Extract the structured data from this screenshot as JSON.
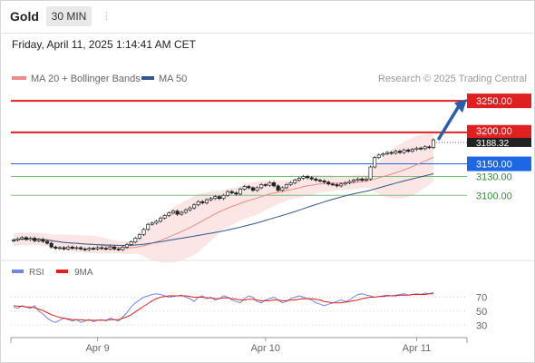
{
  "header": {
    "asset": "Gold",
    "timeframe": "30 MIN"
  },
  "datetime": "Friday, April 11, 2025 1:14:41 AM CET",
  "legend": {
    "ma20": {
      "label": "MA 20 + Bollinger Bands",
      "color": "#ef8a8a"
    },
    "ma50": {
      "label": "MA 50",
      "color": "#34568b"
    },
    "credit": "Research © 2025 Trading Central"
  },
  "rsi_legend": {
    "rsi": {
      "label": "RSI",
      "color": "#6f86e6"
    },
    "ma": {
      "label": "9MA",
      "color": "#e02020"
    }
  },
  "colors": {
    "resistance": "#e02020",
    "pivot": "#1f66e5",
    "support": "#7ac17a",
    "up": "#ffffff",
    "down": "#222222",
    "arrow": "#2a5ea8"
  },
  "chart_data": [
    {
      "type": "candlestick",
      "xaxis_labels": [
        "Apr 9",
        "Apr 10",
        "Apr 11"
      ],
      "ylim": [
        3014,
        3266
      ],
      "price_levels": [
        {
          "label": "3250.00",
          "value": 3250,
          "kind": "resistance"
        },
        {
          "label": "3200.00",
          "value": 3200,
          "kind": "resistance"
        },
        {
          "label": "3150.00",
          "value": 3150,
          "kind": "pivot"
        },
        {
          "label": "3130.00",
          "value": 3130,
          "kind": "support"
        },
        {
          "label": "3100.00",
          "value": 3100,
          "kind": "support"
        }
      ],
      "last_price": {
        "label": "3188.32",
        "value": 3188.32
      },
      "closes": [
        3029,
        3031,
        3033,
        3030,
        3032,
        3028,
        3030,
        3027,
        3024,
        3018,
        3016,
        3017,
        3015,
        3018,
        3016,
        3017,
        3015,
        3014,
        3016,
        3015,
        3017,
        3016,
        3015,
        3018,
        3015,
        3014,
        3018,
        3022,
        3026,
        3032,
        3038,
        3046,
        3054,
        3056,
        3059,
        3064,
        3068,
        3072,
        3075,
        3070,
        3073,
        3077,
        3080,
        3085,
        3090,
        3088,
        3093,
        3095,
        3098,
        3095,
        3100,
        3106,
        3104,
        3102,
        3110,
        3114,
        3112,
        3108,
        3112,
        3117,
        3116,
        3120,
        3115,
        3108,
        3112,
        3117,
        3120,
        3124,
        3127,
        3130,
        3128,
        3126,
        3124,
        3123,
        3121,
        3118,
        3117,
        3115,
        3118,
        3120,
        3122,
        3124,
        3126,
        3124,
        3126,
        3145,
        3160,
        3164,
        3166,
        3168,
        3167,
        3170,
        3168,
        3172,
        3170,
        3173,
        3175,
        3174,
        3177,
        3176,
        3188
      ]
    },
    {
      "type": "line",
      "title": "RSI",
      "ylim": [
        20,
        85
      ],
      "yticks": [
        70,
        50,
        30
      ],
      "series": [
        {
          "name": "RSI",
          "values": [
            56,
            54,
            58,
            56,
            54,
            58,
            50,
            46,
            40,
            36,
            34,
            37,
            40,
            38,
            36,
            38,
            34,
            36,
            38,
            35,
            37,
            38,
            36,
            40,
            38,
            36,
            42,
            48,
            56,
            62,
            66,
            70,
            72,
            74,
            75,
            74,
            72,
            70,
            71,
            72,
            73,
            70,
            68,
            64,
            70,
            72,
            68,
            70,
            66,
            68,
            72,
            70,
            66,
            64,
            62,
            68,
            72,
            70,
            64,
            62,
            66,
            68,
            70,
            66,
            62,
            64,
            68,
            70,
            72,
            70,
            68,
            66,
            62,
            60,
            58,
            60,
            62,
            64,
            66,
            64,
            66,
            70,
            74,
            75,
            73,
            72,
            70,
            71,
            72,
            73,
            72,
            73,
            74,
            75,
            73,
            74,
            75,
            74,
            76,
            75,
            77
          ]
        },
        {
          "name": "9MA",
          "values": [
            58,
            57,
            57,
            56,
            56,
            55,
            53,
            51,
            48,
            45,
            43,
            41,
            40,
            39,
            38,
            38,
            38,
            37,
            37,
            37,
            37,
            37,
            37,
            38,
            38,
            38,
            40,
            42,
            45,
            49,
            53,
            57,
            61,
            65,
            68,
            70,
            71,
            72,
            72,
            72,
            72,
            72,
            71,
            70,
            70,
            70,
            69,
            69,
            68,
            68,
            69,
            69,
            68,
            67,
            66,
            66,
            67,
            67,
            66,
            65,
            65,
            65,
            66,
            66,
            65,
            65,
            66,
            66,
            67,
            68,
            68,
            68,
            67,
            66,
            64,
            63,
            62,
            62,
            62,
            63,
            64,
            65,
            66,
            68,
            69,
            70,
            70,
            71,
            71,
            72,
            72,
            72,
            73,
            73,
            73,
            74,
            74,
            74,
            74,
            75,
            75
          ]
        }
      ]
    }
  ]
}
